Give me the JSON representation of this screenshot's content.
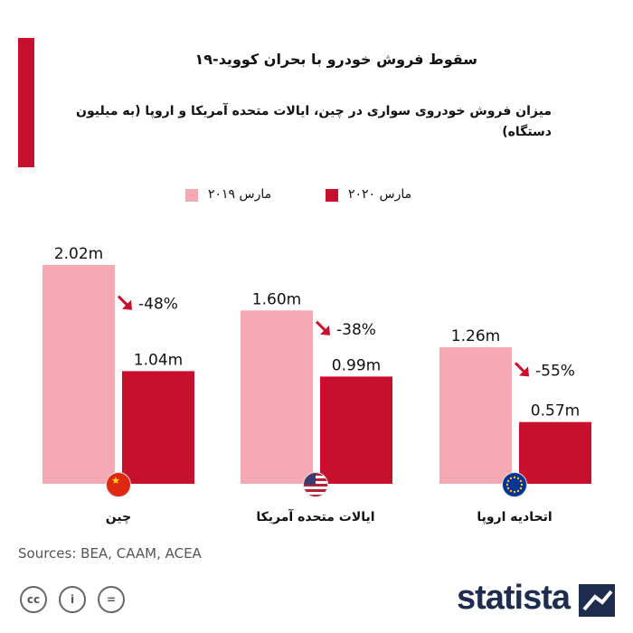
{
  "title": "سقوط فروش خودرو با بحران کووید-۱۹",
  "subtitle": "میزان فروش  خودروی سواری در چین، ایالات متحده آمریکا و اروپا (به میلیون دستگاه)",
  "legend": {
    "series_2019": "مارس ۲۰۱۹",
    "series_2020": "مارس ۲۰۲۰"
  },
  "sources": "Sources: BEA, CAAM, ACEA",
  "logo": "statista",
  "colors": {
    "accent": "#c8102e",
    "bar_2019": "#f7a9b3",
    "bar_2020": "#c8102e",
    "arrow": "#c8102e"
  },
  "chart_data": {
    "type": "bar",
    "title": "سقوط فروش خودرو با بحران کووید-۱۹",
    "categories": [
      "چین",
      "ایالات متحده آمریکا",
      "اتحادیه اروپا"
    ],
    "series": [
      {
        "name": "مارس ۲۰۱۹",
        "values": [
          2.02,
          1.6,
          1.26
        ],
        "labels": [
          "2.02m",
          "1.60m",
          "1.26m"
        ]
      },
      {
        "name": "مارس ۲۰۲۰",
        "values": [
          1.04,
          0.99,
          0.57
        ],
        "labels": [
          "1.04m",
          "0.99m",
          "0.57m"
        ]
      }
    ],
    "changes": [
      "-48%",
      "-38%",
      "-55%"
    ],
    "icons": [
      "china-flag-icon",
      "usa-flag-icon",
      "eu-flag-icon"
    ],
    "ylim": [
      0,
      2.02
    ],
    "grid": false,
    "legend": "top-center"
  }
}
